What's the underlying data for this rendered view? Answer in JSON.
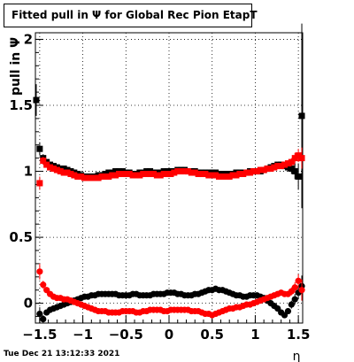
{
  "title": "Fitted pull in  Ψ  for Global Rec Pion EtapT",
  "timestamp": "Tue Dec 21 13:12:33 2021",
  "chart_data": {
    "type": "scatter",
    "ylabel": "pull in  Ψ",
    "xlabel": "η",
    "xlim": [
      -1.55,
      1.55
    ],
    "ylim": [
      -0.15,
      2.05
    ],
    "xticks": [
      -1.5,
      -1,
      -0.5,
      0,
      0.5,
      1,
      1.5
    ],
    "xtick_labels": [
      "−1.5",
      "−1",
      "−0.5",
      "0",
      "0.5",
      "1",
      "1.5"
    ],
    "yticks": [
      0,
      0.5,
      1,
      1.5,
      2
    ],
    "ytick_labels": [
      "0",
      "0.5",
      "1",
      "1.5",
      "2"
    ],
    "grid": true,
    "series": [
      {
        "id": "black-squares",
        "marker": "square",
        "color": "#000000",
        "x": [
          -1.54,
          -1.5,
          -1.46,
          -1.42,
          -1.38,
          -1.34,
          -1.3,
          -1.26,
          -1.22,
          -1.18,
          -1.14,
          -1.1,
          -1.06,
          -1.02,
          -0.98,
          -0.94,
          -0.9,
          -0.86,
          -0.82,
          -0.78,
          -0.74,
          -0.7,
          -0.66,
          -0.62,
          -0.58,
          -0.54,
          -0.5,
          -0.46,
          -0.42,
          -0.38,
          -0.34,
          -0.3,
          -0.26,
          -0.22,
          -0.18,
          -0.14,
          -0.1,
          -0.06,
          -0.02,
          0.02,
          0.06,
          0.1,
          0.14,
          0.18,
          0.22,
          0.26,
          0.3,
          0.34,
          0.38,
          0.42,
          0.46,
          0.5,
          0.54,
          0.58,
          0.62,
          0.66,
          0.7,
          0.74,
          0.78,
          0.82,
          0.86,
          0.9,
          0.94,
          0.98,
          1.02,
          1.06,
          1.1,
          1.14,
          1.18,
          1.22,
          1.26,
          1.3,
          1.34,
          1.38,
          1.42,
          1.46,
          1.5,
          1.54
        ],
        "y": [
          1.54,
          1.17,
          1.1,
          1.07,
          1.05,
          1.04,
          1.03,
          1.02,
          1.02,
          1.01,
          1.0,
          0.99,
          0.98,
          0.97,
          0.96,
          0.96,
          0.96,
          0.96,
          0.97,
          0.97,
          0.98,
          0.99,
          0.99,
          1.0,
          1.0,
          1.0,
          0.99,
          0.99,
          0.98,
          0.98,
          0.99,
          0.99,
          1.0,
          1.0,
          0.99,
          0.99,
          0.99,
          1.0,
          1.0,
          1.0,
          1.0,
          1.01,
          1.01,
          1.01,
          1.0,
          1.0,
          1.0,
          0.99,
          0.99,
          0.99,
          0.99,
          0.99,
          0.99,
          0.98,
          0.98,
          0.98,
          0.98,
          0.98,
          0.99,
          0.99,
          0.99,
          0.99,
          1.0,
          1.0,
          1.0,
          1.0,
          1.01,
          1.02,
          1.03,
          1.04,
          1.05,
          1.05,
          1.04,
          1.03,
          1.02,
          1.0,
          0.96,
          1.42
        ],
        "err": [
          0.12,
          0.05,
          0.03,
          0.02,
          0.02,
          0.01,
          0.01,
          0.01,
          0.01,
          0.01,
          0.01,
          0.01,
          0.01,
          0.01,
          0.01,
          0.01,
          0.01,
          0.01,
          0.01,
          0.01,
          0.01,
          0.01,
          0.01,
          0.01,
          0.01,
          0.01,
          0.01,
          0.01,
          0.01,
          0.01,
          0.01,
          0.01,
          0.01,
          0.01,
          0.01,
          0.01,
          0.01,
          0.01,
          0.01,
          0.01,
          0.01,
          0.01,
          0.01,
          0.01,
          0.01,
          0.01,
          0.01,
          0.01,
          0.01,
          0.01,
          0.01,
          0.01,
          0.01,
          0.01,
          0.01,
          0.01,
          0.01,
          0.01,
          0.01,
          0.01,
          0.01,
          0.01,
          0.01,
          0.01,
          0.01,
          0.01,
          0.01,
          0.01,
          0.01,
          0.01,
          0.02,
          0.02,
          0.02,
          0.03,
          0.04,
          0.06,
          0.1,
          0.7
        ]
      },
      {
        "id": "red-squares",
        "marker": "square",
        "color": "#ff0000",
        "x": [
          -1.5,
          -1.46,
          -1.42,
          -1.38,
          -1.34,
          -1.3,
          -1.26,
          -1.22,
          -1.18,
          -1.14,
          -1.1,
          -1.06,
          -1.02,
          -0.98,
          -0.94,
          -0.9,
          -0.86,
          -0.82,
          -0.78,
          -0.74,
          -0.7,
          -0.66,
          -0.62,
          -0.58,
          -0.54,
          -0.5,
          -0.46,
          -0.42,
          -0.38,
          -0.34,
          -0.3,
          -0.26,
          -0.22,
          -0.18,
          -0.14,
          -0.1,
          -0.06,
          -0.02,
          0.02,
          0.06,
          0.1,
          0.14,
          0.18,
          0.22,
          0.26,
          0.3,
          0.34,
          0.38,
          0.42,
          0.46,
          0.5,
          0.54,
          0.58,
          0.62,
          0.66,
          0.7,
          0.74,
          0.78,
          0.82,
          0.86,
          0.9,
          0.94,
          0.98,
          1.02,
          1.06,
          1.1,
          1.14,
          1.18,
          1.22,
          1.26,
          1.3,
          1.34,
          1.38,
          1.42,
          1.46,
          1.5,
          1.54
        ],
        "y": [
          0.91,
          1.08,
          1.05,
          1.03,
          1.02,
          1.01,
          1.0,
          0.99,
          0.99,
          0.98,
          0.97,
          0.96,
          0.96,
          0.95,
          0.95,
          0.95,
          0.95,
          0.95,
          0.96,
          0.96,
          0.96,
          0.97,
          0.97,
          0.98,
          0.98,
          0.98,
          0.98,
          0.97,
          0.97,
          0.97,
          0.98,
          0.98,
          0.98,
          0.98,
          0.97,
          0.97,
          0.98,
          0.98,
          0.98,
          0.99,
          1.0,
          1.0,
          1.0,
          1.0,
          0.99,
          0.99,
          0.98,
          0.98,
          0.98,
          0.97,
          0.97,
          0.97,
          0.96,
          0.96,
          0.96,
          0.96,
          0.97,
          0.97,
          0.98,
          0.98,
          0.99,
          0.99,
          1.0,
          1.0,
          1.01,
          1.01,
          1.02,
          1.02,
          1.03,
          1.04,
          1.04,
          1.05,
          1.06,
          1.07,
          1.1,
          1.12,
          1.1
        ],
        "err": [
          0.05,
          0.03,
          0.02,
          0.02,
          0.01,
          0.01,
          0.01,
          0.01,
          0.01,
          0.01,
          0.01,
          0.01,
          0.01,
          0.01,
          0.01,
          0.01,
          0.01,
          0.01,
          0.01,
          0.01,
          0.01,
          0.01,
          0.01,
          0.01,
          0.01,
          0.01,
          0.01,
          0.01,
          0.01,
          0.01,
          0.01,
          0.01,
          0.01,
          0.01,
          0.01,
          0.01,
          0.01,
          0.01,
          0.01,
          0.01,
          0.01,
          0.01,
          0.01,
          0.01,
          0.01,
          0.01,
          0.01,
          0.01,
          0.01,
          0.01,
          0.01,
          0.01,
          0.01,
          0.01,
          0.01,
          0.01,
          0.01,
          0.01,
          0.01,
          0.01,
          0.01,
          0.01,
          0.01,
          0.01,
          0.01,
          0.01,
          0.01,
          0.01,
          0.01,
          0.01,
          0.02,
          0.02,
          0.02,
          0.03,
          0.04,
          0.05,
          0.08
        ]
      },
      {
        "id": "black-circles",
        "marker": "circle",
        "color": "#000000",
        "x": [
          -1.5,
          -1.46,
          -1.42,
          -1.38,
          -1.34,
          -1.3,
          -1.26,
          -1.22,
          -1.18,
          -1.14,
          -1.1,
          -1.06,
          -1.02,
          -0.98,
          -0.94,
          -0.9,
          -0.86,
          -0.82,
          -0.78,
          -0.74,
          -0.7,
          -0.66,
          -0.62,
          -0.58,
          -0.54,
          -0.5,
          -0.46,
          -0.42,
          -0.38,
          -0.34,
          -0.3,
          -0.26,
          -0.22,
          -0.18,
          -0.14,
          -0.1,
          -0.06,
          -0.02,
          0.02,
          0.06,
          0.1,
          0.14,
          0.18,
          0.22,
          0.26,
          0.3,
          0.34,
          0.38,
          0.42,
          0.46,
          0.5,
          0.54,
          0.58,
          0.62,
          0.66,
          0.7,
          0.74,
          0.78,
          0.82,
          0.86,
          0.9,
          0.94,
          0.98,
          1.02,
          1.06,
          1.1,
          1.14,
          1.18,
          1.22,
          1.26,
          1.3,
          1.34,
          1.38,
          1.42,
          1.46,
          1.5,
          1.54
        ],
        "y": [
          -0.08,
          -0.12,
          -0.07,
          -0.05,
          -0.04,
          -0.03,
          -0.02,
          -0.01,
          0.0,
          0.01,
          0.02,
          0.03,
          0.04,
          0.05,
          0.05,
          0.06,
          0.06,
          0.07,
          0.07,
          0.07,
          0.07,
          0.07,
          0.07,
          0.06,
          0.06,
          0.06,
          0.06,
          0.07,
          0.07,
          0.06,
          0.06,
          0.06,
          0.06,
          0.07,
          0.07,
          0.07,
          0.07,
          0.08,
          0.08,
          0.08,
          0.07,
          0.07,
          0.06,
          0.06,
          0.06,
          0.07,
          0.07,
          0.08,
          0.09,
          0.1,
          0.1,
          0.11,
          0.1,
          0.1,
          0.09,
          0.08,
          0.07,
          0.06,
          0.06,
          0.05,
          0.05,
          0.06,
          0.06,
          0.06,
          0.05,
          0.04,
          0.02,
          0.0,
          -0.02,
          -0.04,
          -0.07,
          -0.09,
          -0.06,
          -0.01,
          0.03,
          0.08,
          0.13
        ],
        "err": [
          0.05,
          0.03,
          0.02,
          0.02,
          0.01,
          0.01,
          0.01,
          0.01,
          0.01,
          0.01,
          0.01,
          0.01,
          0.01,
          0.01,
          0.01,
          0.01,
          0.01,
          0.01,
          0.01,
          0.01,
          0.01,
          0.01,
          0.01,
          0.01,
          0.01,
          0.01,
          0.01,
          0.01,
          0.01,
          0.01,
          0.01,
          0.01,
          0.01,
          0.01,
          0.01,
          0.01,
          0.01,
          0.01,
          0.01,
          0.01,
          0.01,
          0.01,
          0.01,
          0.01,
          0.01,
          0.01,
          0.01,
          0.01,
          0.01,
          0.01,
          0.01,
          0.01,
          0.01,
          0.01,
          0.01,
          0.01,
          0.01,
          0.01,
          0.01,
          0.01,
          0.01,
          0.01,
          0.01,
          0.01,
          0.01,
          0.01,
          0.01,
          0.01,
          0.01,
          0.01,
          0.02,
          0.02,
          0.02,
          0.03,
          0.04,
          0.05,
          0.08
        ]
      },
      {
        "id": "red-circles",
        "marker": "circle",
        "color": "#ff0000",
        "x": [
          -1.5,
          -1.46,
          -1.42,
          -1.38,
          -1.34,
          -1.3,
          -1.26,
          -1.22,
          -1.18,
          -1.14,
          -1.1,
          -1.06,
          -1.02,
          -0.98,
          -0.94,
          -0.9,
          -0.86,
          -0.82,
          -0.78,
          -0.74,
          -0.7,
          -0.66,
          -0.62,
          -0.58,
          -0.54,
          -0.5,
          -0.46,
          -0.42,
          -0.38,
          -0.34,
          -0.3,
          -0.26,
          -0.22,
          -0.18,
          -0.14,
          -0.1,
          -0.06,
          -0.02,
          0.02,
          0.06,
          0.1,
          0.14,
          0.18,
          0.22,
          0.26,
          0.3,
          0.34,
          0.38,
          0.42,
          0.46,
          0.5,
          0.54,
          0.58,
          0.62,
          0.66,
          0.7,
          0.74,
          0.78,
          0.82,
          0.86,
          0.9,
          0.94,
          0.98,
          1.02,
          1.06,
          1.1,
          1.14,
          1.18,
          1.22,
          1.26,
          1.3,
          1.34,
          1.38,
          1.42,
          1.46,
          1.5,
          1.54
        ],
        "y": [
          0.24,
          0.14,
          0.1,
          0.07,
          0.05,
          0.04,
          0.04,
          0.03,
          0.03,
          0.02,
          0.01,
          0.0,
          -0.01,
          -0.02,
          -0.03,
          -0.04,
          -0.05,
          -0.06,
          -0.06,
          -0.06,
          -0.07,
          -0.07,
          -0.07,
          -0.07,
          -0.06,
          -0.06,
          -0.06,
          -0.06,
          -0.07,
          -0.07,
          -0.06,
          -0.06,
          -0.05,
          -0.05,
          -0.05,
          -0.05,
          -0.06,
          -0.06,
          -0.05,
          -0.05,
          -0.05,
          -0.05,
          -0.05,
          -0.05,
          -0.06,
          -0.06,
          -0.06,
          -0.07,
          -0.08,
          -0.08,
          -0.09,
          -0.08,
          -0.07,
          -0.06,
          -0.05,
          -0.04,
          -0.04,
          -0.03,
          -0.03,
          -0.02,
          -0.01,
          -0.01,
          0.0,
          0.01,
          0.02,
          0.03,
          0.04,
          0.05,
          0.06,
          0.07,
          0.08,
          0.07,
          0.07,
          0.09,
          0.12,
          0.17,
          0.1
        ],
        "err": [
          0.06,
          0.03,
          0.02,
          0.02,
          0.01,
          0.01,
          0.01,
          0.01,
          0.01,
          0.01,
          0.01,
          0.01,
          0.01,
          0.01,
          0.01,
          0.01,
          0.01,
          0.01,
          0.01,
          0.01,
          0.01,
          0.01,
          0.01,
          0.01,
          0.01,
          0.01,
          0.01,
          0.01,
          0.01,
          0.01,
          0.01,
          0.01,
          0.01,
          0.01,
          0.01,
          0.01,
          0.01,
          0.01,
          0.01,
          0.01,
          0.01,
          0.01,
          0.01,
          0.01,
          0.01,
          0.01,
          0.01,
          0.01,
          0.01,
          0.01,
          0.01,
          0.01,
          0.01,
          0.01,
          0.01,
          0.01,
          0.01,
          0.01,
          0.01,
          0.01,
          0.01,
          0.01,
          0.01,
          0.01,
          0.01,
          0.01,
          0.01,
          0.01,
          0.01,
          0.01,
          0.02,
          0.02,
          0.02,
          0.03,
          0.04,
          0.05,
          0.08
        ]
      }
    ]
  }
}
